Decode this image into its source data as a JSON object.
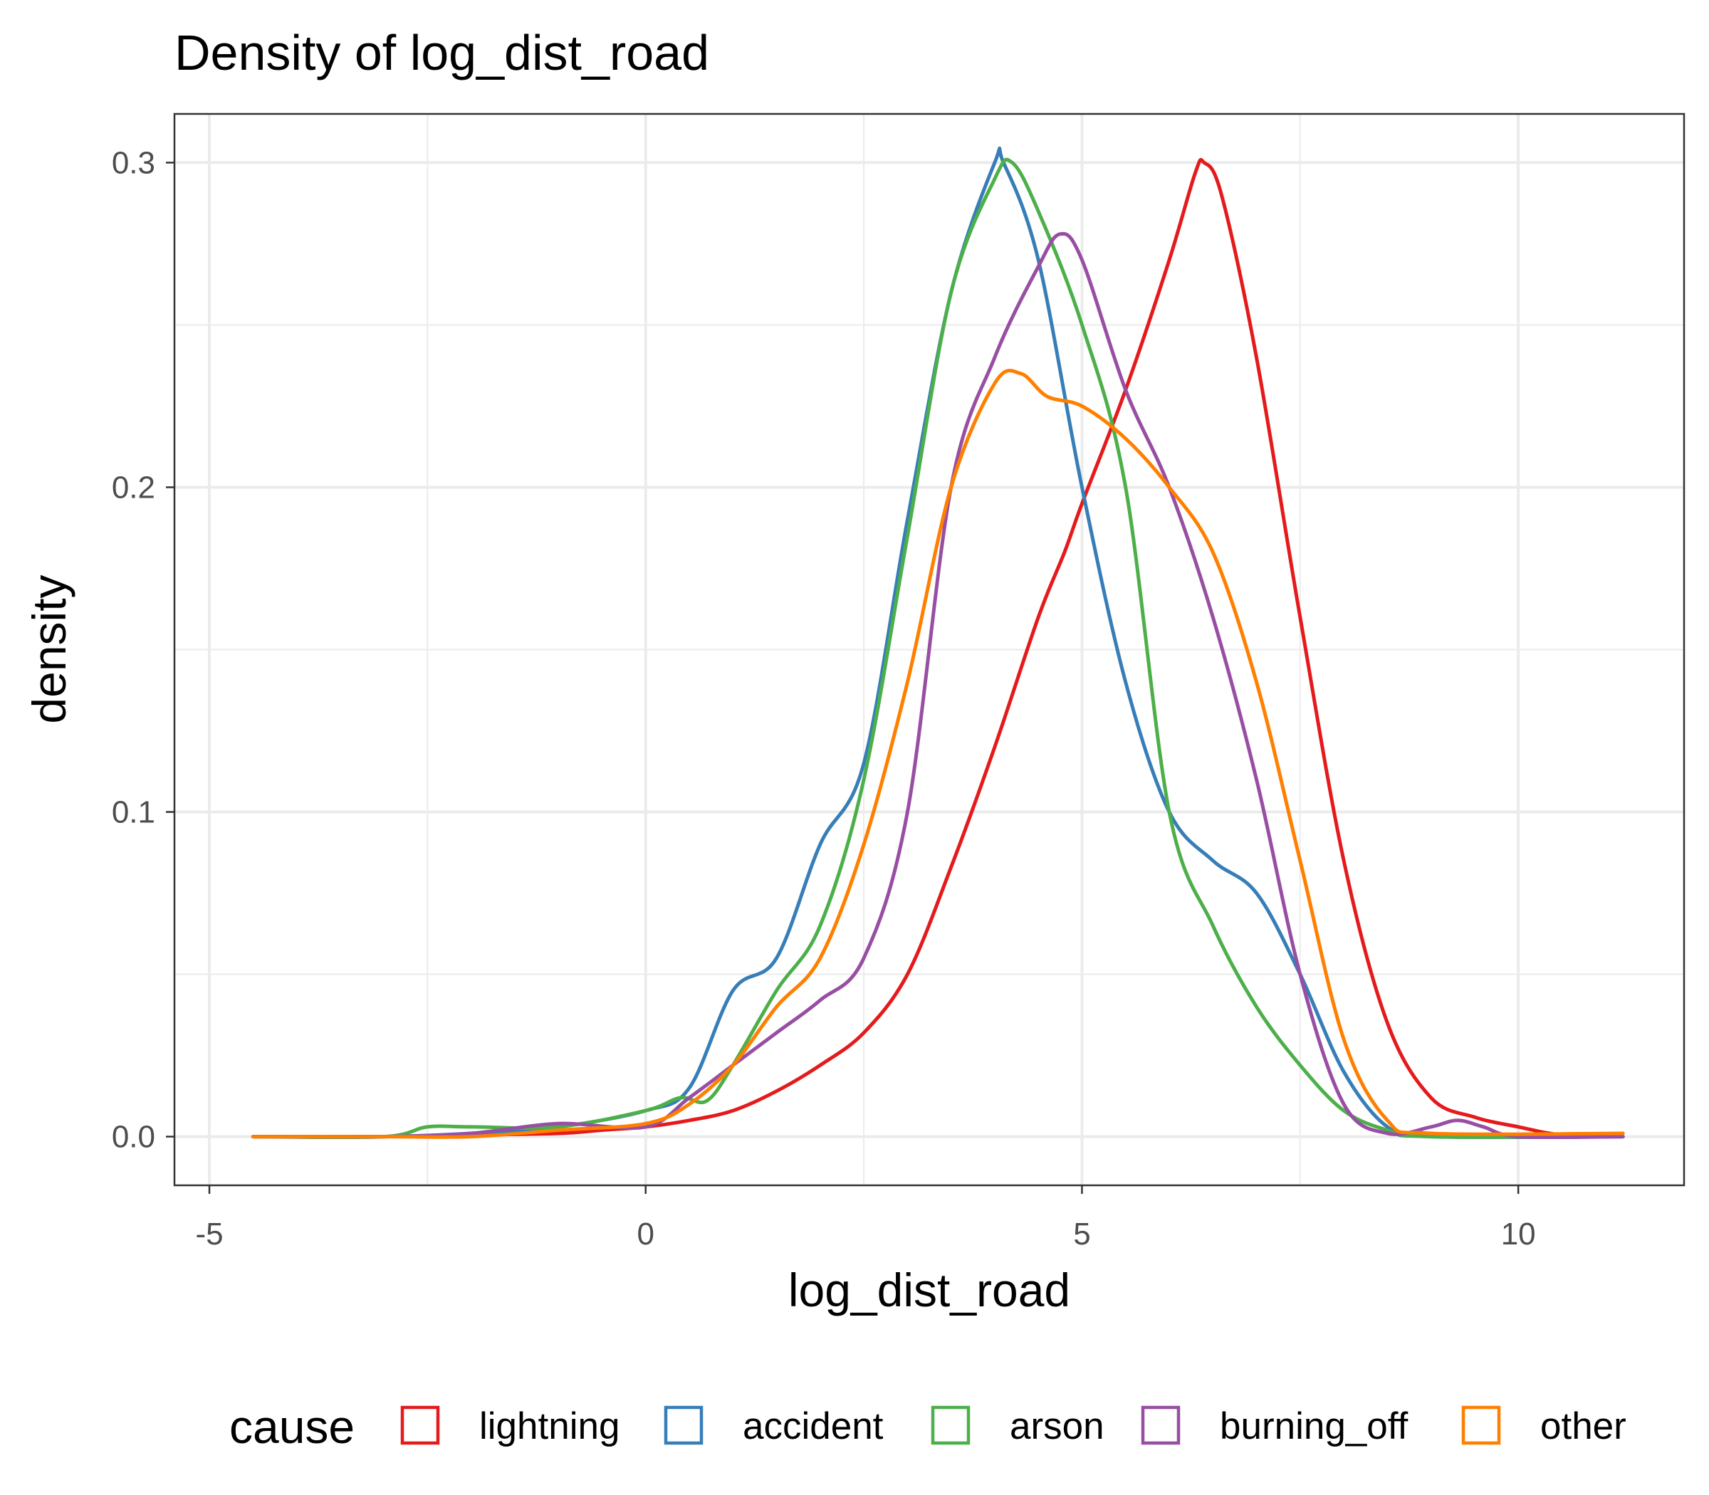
{
  "chart_data": {
    "type": "line",
    "title": "Density of log_dist_road",
    "xlabel": "log_dist_road",
    "ylabel": "density",
    "xlim": [
      -5.4,
      11.9
    ],
    "ylim": [
      -0.015,
      0.315
    ],
    "x_ticks": [
      -5,
      0,
      5,
      10
    ],
    "x_tick_labels": [
      "-5",
      "0",
      "5",
      "10"
    ],
    "y_ticks": [
      0.0,
      0.1,
      0.2,
      0.3
    ],
    "y_tick_labels": [
      "0.0",
      "0.1",
      "0.2",
      "0.3"
    ],
    "grid": true,
    "legend_position": "bottom",
    "legend_title": "cause",
    "series": [
      {
        "name": "lightning",
        "color": "#E41A1C",
        "points": [
          [
            -4.5,
            0
          ],
          [
            -3,
            0
          ],
          [
            -2,
            0.0005
          ],
          [
            -1,
            0.001
          ],
          [
            -0.5,
            0.002
          ],
          [
            0,
            0.003
          ],
          [
            0.5,
            0.005
          ],
          [
            1,
            0.008
          ],
          [
            1.5,
            0.014
          ],
          [
            2,
            0.022
          ],
          [
            2.5,
            0.032
          ],
          [
            3,
            0.05
          ],
          [
            3.5,
            0.083
          ],
          [
            4,
            0.12
          ],
          [
            4.5,
            0.16
          ],
          [
            4.8,
            0.18
          ],
          [
            5,
            0.195
          ],
          [
            5.5,
            0.23
          ],
          [
            6,
            0.27
          ],
          [
            6.3,
            0.297
          ],
          [
            6.4,
            0.3
          ],
          [
            6.6,
            0.29
          ],
          [
            7,
            0.24
          ],
          [
            7.5,
            0.16
          ],
          [
            8,
            0.085
          ],
          [
            8.5,
            0.035
          ],
          [
            9,
            0.012
          ],
          [
            9.5,
            0.006
          ],
          [
            10,
            0.003
          ],
          [
            10.5,
            0.0005
          ],
          [
            11.2,
            0
          ]
        ]
      },
      {
        "name": "accident",
        "color": "#377EB8",
        "points": [
          [
            -4.5,
            0
          ],
          [
            -3,
            0
          ],
          [
            -2,
            0.001
          ],
          [
            -1,
            0.003
          ],
          [
            0,
            0.008
          ],
          [
            0.5,
            0.015
          ],
          [
            1,
            0.045
          ],
          [
            1.5,
            0.055
          ],
          [
            2,
            0.09
          ],
          [
            2.5,
            0.115
          ],
          [
            3,
            0.19
          ],
          [
            3.5,
            0.26
          ],
          [
            4,
            0.3
          ],
          [
            4.1,
            0.3
          ],
          [
            4.5,
            0.27
          ],
          [
            5,
            0.2
          ],
          [
            5.5,
            0.14
          ],
          [
            6,
            0.1
          ],
          [
            6.5,
            0.085
          ],
          [
            7,
            0.075
          ],
          [
            7.5,
            0.05
          ],
          [
            8,
            0.02
          ],
          [
            8.5,
            0.003
          ],
          [
            9,
            0
          ],
          [
            11.2,
            0
          ]
        ]
      },
      {
        "name": "arson",
        "color": "#4DAF4A",
        "points": [
          [
            -4.5,
            0
          ],
          [
            -3,
            0
          ],
          [
            -2.5,
            0.003
          ],
          [
            -2,
            0.003
          ],
          [
            -1,
            0.003
          ],
          [
            0,
            0.008
          ],
          [
            0.4,
            0.012
          ],
          [
            0.7,
            0.011
          ],
          [
            1,
            0.022
          ],
          [
            1.5,
            0.045
          ],
          [
            2,
            0.065
          ],
          [
            2.5,
            0.11
          ],
          [
            3,
            0.185
          ],
          [
            3.5,
            0.26
          ],
          [
            4,
            0.295
          ],
          [
            4.2,
            0.3
          ],
          [
            4.5,
            0.285
          ],
          [
            5,
            0.25
          ],
          [
            5.5,
            0.2
          ],
          [
            6,
            0.1
          ],
          [
            6.5,
            0.065
          ],
          [
            7,
            0.04
          ],
          [
            7.5,
            0.022
          ],
          [
            8,
            0.008
          ],
          [
            8.5,
            0.002
          ],
          [
            9,
            0
          ],
          [
            11.2,
            0
          ]
        ]
      },
      {
        "name": "burning_off",
        "color": "#984EA3",
        "points": [
          [
            -4.5,
            0
          ],
          [
            -3,
            0
          ],
          [
            -2,
            0.001
          ],
          [
            -1,
            0.004
          ],
          [
            0,
            0.003
          ],
          [
            0.5,
            0.012
          ],
          [
            1,
            0.022
          ],
          [
            1.5,
            0.032
          ],
          [
            2,
            0.042
          ],
          [
            2.5,
            0.055
          ],
          [
            3,
            0.1
          ],
          [
            3.5,
            0.2
          ],
          [
            4,
            0.24
          ],
          [
            4.5,
            0.268
          ],
          [
            4.75,
            0.278
          ],
          [
            5,
            0.27
          ],
          [
            5.5,
            0.23
          ],
          [
            6,
            0.2
          ],
          [
            6.5,
            0.16
          ],
          [
            7,
            0.11
          ],
          [
            7.5,
            0.05
          ],
          [
            8,
            0.01
          ],
          [
            8.5,
            0.001
          ],
          [
            9,
            0.003
          ],
          [
            9.3,
            0.005
          ],
          [
            9.6,
            0.003
          ],
          [
            10,
            0
          ],
          [
            11.2,
            0
          ]
        ]
      },
      {
        "name": "other",
        "color": "#FF7F00",
        "points": [
          [
            -4.5,
            0
          ],
          [
            -3,
            0
          ],
          [
            -2,
            0
          ],
          [
            -1,
            0.002
          ],
          [
            0,
            0.004
          ],
          [
            0.5,
            0.01
          ],
          [
            1,
            0.022
          ],
          [
            1.5,
            0.04
          ],
          [
            2,
            0.055
          ],
          [
            2.5,
            0.09
          ],
          [
            3,
            0.14
          ],
          [
            3.5,
            0.2
          ],
          [
            4,
            0.232
          ],
          [
            4.3,
            0.235
          ],
          [
            4.6,
            0.228
          ],
          [
            5,
            0.225
          ],
          [
            5.5,
            0.215
          ],
          [
            6,
            0.2
          ],
          [
            6.5,
            0.18
          ],
          [
            7,
            0.14
          ],
          [
            7.5,
            0.085
          ],
          [
            8,
            0.03
          ],
          [
            8.5,
            0.005
          ],
          [
            9,
            0.001
          ],
          [
            11.2,
            0.001
          ]
        ]
      }
    ]
  }
}
